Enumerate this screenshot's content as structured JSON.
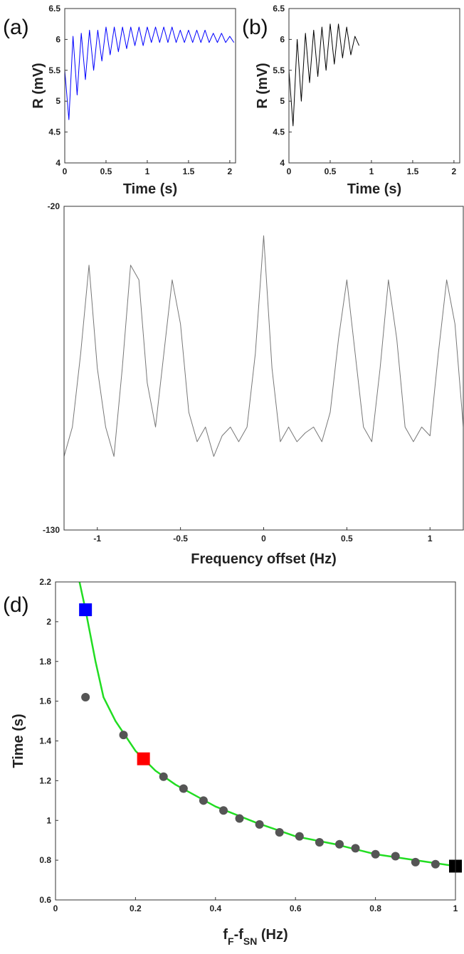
{
  "chart_data": [
    {
      "type": "line",
      "panel_label": "(a)",
      "xlabel": "Time (s)",
      "ylabel": "R (mV)",
      "xlim": [
        0,
        2.07
      ],
      "ylim": [
        4,
        6.5
      ],
      "xticks": [
        0,
        0.5,
        1,
        1.5,
        2
      ],
      "yticks": [
        4,
        4.5,
        5,
        5.5,
        6,
        6.5
      ],
      "series": [
        {
          "color": "#0000ff",
          "x": [
            0,
            0.05,
            0.1,
            0.15,
            0.2,
            0.25,
            0.3,
            0.35,
            0.4,
            0.45,
            0.5,
            0.55,
            0.6,
            0.65,
            0.7,
            0.75,
            0.8,
            0.85,
            0.9,
            0.95,
            1.0,
            1.05,
            1.1,
            1.15,
            1.2,
            1.25,
            1.3,
            1.35,
            1.4,
            1.45,
            1.5,
            1.55,
            1.6,
            1.65,
            1.7,
            1.75,
            1.8,
            1.85,
            1.9,
            1.95,
            2.0,
            2.05
          ],
          "values": [
            5.5,
            4.7,
            6.05,
            5.1,
            6.1,
            5.35,
            6.15,
            5.5,
            6.15,
            5.65,
            6.2,
            5.75,
            6.2,
            5.8,
            6.2,
            5.85,
            6.2,
            5.9,
            6.2,
            5.9,
            6.2,
            5.95,
            6.2,
            5.95,
            6.2,
            5.95,
            6.2,
            5.95,
            6.15,
            5.95,
            6.15,
            5.95,
            6.15,
            5.95,
            6.15,
            5.95,
            6.1,
            5.95,
            6.1,
            5.95,
            6.05,
            5.95
          ]
        }
      ]
    },
    {
      "type": "line",
      "panel_label": "(b)",
      "xlabel": "Time (s)",
      "ylabel": "R (mV)",
      "xlim": [
        0,
        2.07
      ],
      "ylim": [
        4,
        6.5
      ],
      "xticks": [
        0,
        0.5,
        1,
        1.5,
        2
      ],
      "yticks": [
        4,
        4.5,
        5,
        5.5,
        6,
        6.5
      ],
      "series": [
        {
          "color": "#000000",
          "x": [
            0,
            0.05,
            0.1,
            0.15,
            0.2,
            0.25,
            0.3,
            0.35,
            0.4,
            0.45,
            0.5,
            0.55,
            0.6,
            0.65,
            0.7,
            0.75,
            0.8,
            0.85
          ],
          "values": [
            5.5,
            4.6,
            6.0,
            5.0,
            6.1,
            5.3,
            6.15,
            5.4,
            6.2,
            5.5,
            6.25,
            5.6,
            6.25,
            5.7,
            6.2,
            5.75,
            6.05,
            5.9
          ]
        }
      ]
    },
    {
      "type": "line",
      "xlabel": "Frequency offset (Hz)",
      "xlim": [
        -1.2,
        1.2
      ],
      "ylim": [
        -130,
        -20
      ],
      "xticks": [
        -1,
        -0.5,
        0,
        0.5,
        1
      ],
      "yticks": [
        -130,
        -20
      ],
      "series": [
        {
          "color": "#777777",
          "x": [
            -1.2,
            -1.15,
            -1.1,
            -1.05,
            -1.0,
            -0.95,
            -0.9,
            -0.85,
            -0.8,
            -0.75,
            -0.7,
            -0.65,
            -0.6,
            -0.55,
            -0.5,
            -0.45,
            -0.4,
            -0.35,
            -0.3,
            -0.25,
            -0.2,
            -0.15,
            -0.1,
            -0.05,
            0,
            0.05,
            0.1,
            0.15,
            0.2,
            0.25,
            0.3,
            0.35,
            0.4,
            0.45,
            0.5,
            0.55,
            0.6,
            0.65,
            0.7,
            0.75,
            0.8,
            0.85,
            0.9,
            0.95,
            1.0,
            1.05,
            1.1,
            1.15,
            1.2
          ],
          "values": [
            -105,
            -95,
            -70,
            -40,
            -75,
            -95,
            -105,
            -75,
            -40,
            -45,
            -80,
            -95,
            -70,
            -45,
            -60,
            -90,
            -100,
            -95,
            -105,
            -98,
            -95,
            -100,
            -95,
            -70,
            -30,
            -75,
            -100,
            -95,
            -100,
            -97,
            -95,
            -100,
            -90,
            -65,
            -45,
            -70,
            -95,
            -100,
            -75,
            -45,
            -65,
            -95,
            -100,
            -95,
            -98,
            -70,
            -45,
            -60,
            -95
          ]
        }
      ]
    },
    {
      "type": "scatter",
      "panel_label": "(d)",
      "ylabel": "Time (s)",
      "xlabel": [
        {
          "text": "f"
        },
        {
          "text": "F",
          "sub": true
        },
        {
          "text": "-f"
        },
        {
          "text": "SN",
          "sub": true
        },
        {
          "text": " (Hz)"
        }
      ],
      "xlim": [
        0,
        1.0
      ],
      "ylim": [
        0.6,
        2.2
      ],
      "xticks": [
        0,
        0.2,
        0.4,
        0.6,
        0.8,
        1
      ],
      "yticks": [
        0.6,
        0.8,
        1,
        1.2,
        1.4,
        1.6,
        1.8,
        2,
        2.2
      ],
      "series": [
        {
          "color": "#22dd22",
          "x": [
            0.06,
            0.075,
            0.1,
            0.12,
            0.15,
            0.2,
            0.25,
            0.3,
            0.4,
            0.5,
            0.6,
            0.7,
            0.8,
            0.9,
            1.0
          ],
          "values": [
            2.2,
            2.06,
            1.8,
            1.62,
            1.5,
            1.35,
            1.25,
            1.18,
            1.07,
            0.99,
            0.92,
            0.88,
            0.83,
            0.8,
            0.77
          ]
        },
        {
          "color": "#555555",
          "marker": "circle",
          "x": [
            0.075,
            0.17,
            0.27,
            0.32,
            0.37,
            0.42,
            0.46,
            0.51,
            0.56,
            0.61,
            0.66,
            0.71,
            0.75,
            0.8,
            0.85,
            0.9,
            0.95
          ],
          "values": [
            1.62,
            1.43,
            1.22,
            1.16,
            1.1,
            1.05,
            1.01,
            0.98,
            0.94,
            0.92,
            0.89,
            0.88,
            0.86,
            0.83,
            0.82,
            0.79,
            0.78
          ]
        },
        {
          "color": "#0000ff",
          "marker": "square",
          "x": [
            0.075
          ],
          "values": [
            2.06
          ]
        },
        {
          "color": "#ff0000",
          "marker": "square",
          "x": [
            0.22
          ],
          "values": [
            1.31
          ]
        },
        {
          "color": "#000000",
          "marker": "square",
          "x": [
            1.0
          ],
          "values": [
            0.77
          ]
        }
      ]
    }
  ]
}
